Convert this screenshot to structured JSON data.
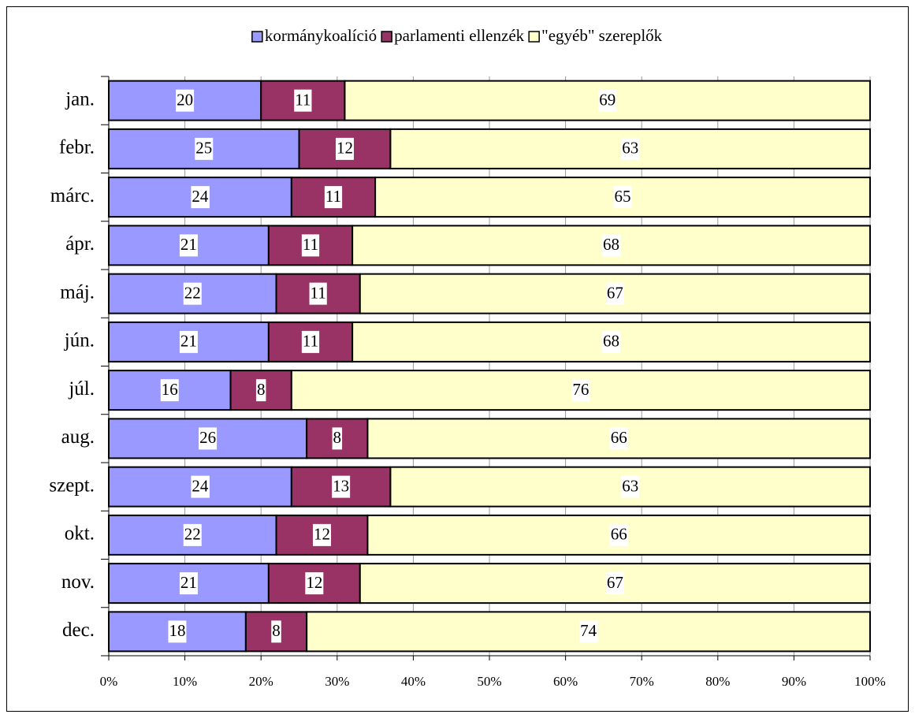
{
  "chart_data": {
    "type": "hbar_stacked_percent",
    "categories": [
      "jan.",
      "febr.",
      "márc.",
      "ápr.",
      "máj.",
      "jún.",
      "júl.",
      "aug.",
      "szept.",
      "okt.",
      "nov.",
      "dec."
    ],
    "series": [
      {
        "name": "kormánykoalíció",
        "color": "#9999ff",
        "values": [
          20,
          25,
          24,
          21,
          22,
          21,
          16,
          26,
          24,
          22,
          21,
          18
        ]
      },
      {
        "name": "parlamenti ellenzék",
        "color": "#993366",
        "values": [
          11,
          12,
          11,
          11,
          11,
          11,
          8,
          8,
          13,
          12,
          12,
          8
        ]
      },
      {
        "name": "\"egyéb\" szereplők",
        "color": "#ffffcc",
        "values": [
          69,
          63,
          65,
          68,
          67,
          68,
          76,
          66,
          63,
          66,
          67,
          74
        ]
      }
    ],
    "xlim": [
      0,
      100
    ],
    "xticks": [
      {
        "value": 0,
        "label": "0%"
      },
      {
        "value": 10,
        "label": "10%"
      },
      {
        "value": 20,
        "label": "20%"
      },
      {
        "value": 30,
        "label": "30%"
      },
      {
        "value": 40,
        "label": "40%"
      },
      {
        "value": 50,
        "label": "50%"
      },
      {
        "value": 60,
        "label": "60%"
      },
      {
        "value": 70,
        "label": "70%"
      },
      {
        "value": 80,
        "label": "80%"
      },
      {
        "value": 90,
        "label": "90%"
      },
      {
        "value": 100,
        "label": "100%"
      }
    ],
    "grid": true,
    "legend": "top"
  }
}
